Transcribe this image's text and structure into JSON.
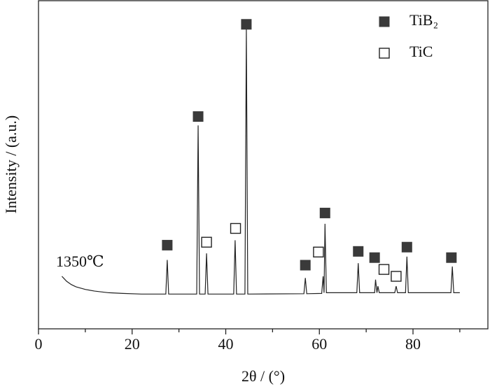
{
  "chart_data": {
    "type": "line",
    "x_label": "2θ / (°)",
    "y_label": "Intensity / (a.u.)",
    "annotation": "1350℃",
    "xlim": [
      0,
      96
    ],
    "ylim": [
      0,
      100
    ],
    "xticks": [
      0,
      20,
      40,
      60,
      80
    ],
    "xminor_ticks": [
      10,
      30,
      50,
      70,
      90
    ],
    "x": [
      5,
      6,
      7,
      8,
      10,
      12,
      15,
      18,
      22,
      27.2,
      27.5,
      27.8,
      33.8,
      34.1,
      34.4,
      35.6,
      35.9,
      36.2,
      41.7,
      42.0,
      42.3,
      44.1,
      44.4,
      44.7,
      56.7,
      57.0,
      57.3,
      60.5,
      60.8,
      61.0,
      61.2,
      61.5,
      68.0,
      68.3,
      68.6,
      71.8,
      72.0,
      72.3,
      72.5,
      72.8,
      76.1,
      76.4,
      76.7,
      78.4,
      78.7,
      79.0,
      88.1,
      88.4,
      88.7,
      90
    ],
    "values": [
      16,
      14.5,
      13.5,
      12.8,
      12,
      11.5,
      11,
      10.8,
      10.6,
      10.6,
      21,
      10.6,
      10.6,
      62,
      10.6,
      10.6,
      23,
      10.6,
      10.6,
      27,
      10.6,
      10.6,
      91.5,
      10.6,
      10.7,
      15.5,
      10.7,
      10.8,
      16,
      11,
      32,
      11,
      11,
      20,
      11,
      11,
      15,
      11,
      13,
      11,
      11,
      13,
      11,
      11,
      22,
      11,
      11,
      19,
      11,
      11
    ],
    "color": "#222222",
    "phases": [
      {
        "name": "TiB₂",
        "filled": true,
        "color": "#3a3a3a",
        "x": [
          27.5,
          34.1,
          44.4,
          57.0,
          61.2,
          68.3,
          71.8,
          78.7,
          88.2
        ],
        "values": [
          25.5,
          64.7,
          92.8,
          19.4,
          35.3,
          23.6,
          21.7,
          24.9,
          21.7
        ]
      },
      {
        "name": "TiC",
        "filled": false,
        "color": "#222222",
        "x": [
          35.9,
          42.1,
          59.8,
          73.8,
          76.4
        ],
        "values": [
          26.4,
          30.6,
          23.4,
          18.1,
          16.0
        ]
      }
    ]
  }
}
